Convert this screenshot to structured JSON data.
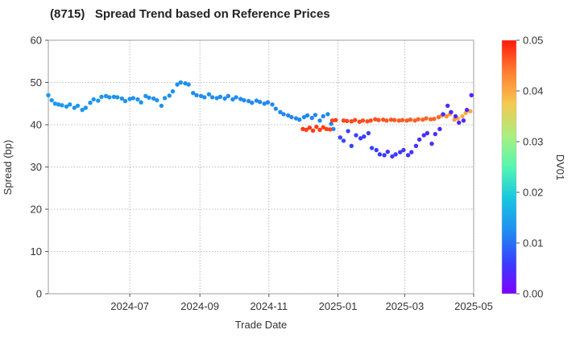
{
  "chart_data": {
    "type": "scatter",
    "title": "(8715)   Spread Trend based on Reference Prices",
    "xlabel": "Trade Date",
    "ylabel": "Spread (bp)",
    "colorbar_label": "DV01",
    "x_range": [
      "2024-04-20",
      "2025-05-01"
    ],
    "y_range": [
      0,
      60
    ],
    "x_ticks": [
      "2024-07",
      "2024-09",
      "2024-11",
      "2025-01",
      "2025-03",
      "2025-05"
    ],
    "y_ticks": [
      "0",
      "10",
      "20",
      "30",
      "40",
      "50",
      "60"
    ],
    "colorbar_range": [
      0,
      0.05
    ],
    "colorbar_ticks": [
      "0.00",
      "0.01",
      "0.02",
      "0.03",
      "0.04",
      "0.05"
    ],
    "colormap": "jet",
    "grid": "dotted",
    "series": [
      {
        "points": [
          [
            "2024-04-20",
            47.0,
            0.0135
          ],
          [
            "2024-04-23",
            45.8,
            0.0135
          ],
          [
            "2024-04-26",
            45.0,
            0.0134
          ],
          [
            "2024-04-29",
            44.8,
            0.0134
          ],
          [
            "2024-05-02",
            44.6,
            0.0134
          ],
          [
            "2024-05-06",
            44.3,
            0.0134
          ],
          [
            "2024-05-09",
            44.8,
            0.0133
          ],
          [
            "2024-05-13",
            44.0,
            0.0133
          ],
          [
            "2024-05-16",
            44.5,
            0.0133
          ],
          [
            "2024-05-20",
            43.5,
            0.0133
          ],
          [
            "2024-05-23",
            44.0,
            0.0132
          ],
          [
            "2024-05-27",
            45.2,
            0.0132
          ],
          [
            "2024-05-30",
            46.0,
            0.0132
          ],
          [
            "2024-06-03",
            45.7,
            0.0132
          ],
          [
            "2024-06-06",
            46.6,
            0.0131
          ],
          [
            "2024-06-10",
            46.8,
            0.0131
          ],
          [
            "2024-06-13",
            46.5,
            0.0131
          ],
          [
            "2024-06-17",
            46.6,
            0.0131
          ],
          [
            "2024-06-20",
            46.5,
            0.013
          ],
          [
            "2024-06-24",
            46.2,
            0.013
          ],
          [
            "2024-06-27",
            45.6,
            0.013
          ],
          [
            "2024-07-01",
            46.1,
            0.013
          ],
          [
            "2024-07-04",
            46.3,
            0.0129
          ],
          [
            "2024-07-08",
            46.0,
            0.0129
          ],
          [
            "2024-07-11",
            45.3,
            0.0129
          ],
          [
            "2024-07-15",
            46.8,
            0.0129
          ],
          [
            "2024-07-18",
            46.4,
            0.0128
          ],
          [
            "2024-07-22",
            46.2,
            0.0128
          ],
          [
            "2024-07-25",
            45.8,
            0.0128
          ],
          [
            "2024-07-29",
            44.5,
            0.0128
          ],
          [
            "2024-08-01",
            46.3,
            0.0127
          ],
          [
            "2024-08-05",
            46.9,
            0.0127
          ],
          [
            "2024-08-08",
            47.9,
            0.0127
          ],
          [
            "2024-08-12",
            49.5,
            0.0127
          ],
          [
            "2024-08-15",
            50.0,
            0.0126
          ],
          [
            "2024-08-19",
            49.8,
            0.0126
          ],
          [
            "2024-08-22",
            49.5,
            0.0126
          ],
          [
            "2024-08-26",
            47.5,
            0.0126
          ],
          [
            "2024-08-29",
            47.0,
            0.0125
          ],
          [
            "2024-09-02",
            46.8,
            0.0125
          ],
          [
            "2024-09-05",
            46.5,
            0.0125
          ],
          [
            "2024-09-09",
            47.2,
            0.0125
          ],
          [
            "2024-09-12",
            46.5,
            0.0124
          ],
          [
            "2024-09-16",
            46.3,
            0.0124
          ],
          [
            "2024-09-19",
            46.6,
            0.0124
          ],
          [
            "2024-09-23",
            46.2,
            0.0124
          ],
          [
            "2024-09-26",
            46.8,
            0.0123
          ],
          [
            "2024-09-30",
            46.0,
            0.0123
          ],
          [
            "2024-10-03",
            46.5,
            0.0123
          ],
          [
            "2024-10-07",
            46.1,
            0.0123
          ],
          [
            "2024-10-10",
            45.8,
            0.0122
          ],
          [
            "2024-10-14",
            45.6,
            0.0122
          ],
          [
            "2024-10-17",
            45.2,
            0.0122
          ],
          [
            "2024-10-21",
            45.7,
            0.0122
          ],
          [
            "2024-10-24",
            45.4,
            0.0121
          ],
          [
            "2024-10-28",
            45.0,
            0.0121
          ],
          [
            "2024-10-31",
            45.3,
            0.0121
          ],
          [
            "2024-11-04",
            44.8,
            0.0121
          ],
          [
            "2024-11-07",
            43.8,
            0.012
          ],
          [
            "2024-11-11",
            43.0,
            0.012
          ],
          [
            "2024-11-14",
            42.5,
            0.012
          ],
          [
            "2024-11-18",
            42.2,
            0.012
          ],
          [
            "2024-11-21",
            41.8,
            0.0119
          ],
          [
            "2024-11-25",
            41.5,
            0.0119
          ],
          [
            "2024-11-28",
            41.2,
            0.0119
          ],
          [
            "2024-12-02",
            41.8,
            0.0119
          ],
          [
            "2024-12-05",
            42.2,
            0.0118
          ],
          [
            "2024-12-09",
            41.6,
            0.0118
          ],
          [
            "2024-12-12",
            42.3,
            0.0118
          ],
          [
            "2024-12-16",
            41.0,
            0.0118
          ],
          [
            "2024-12-19",
            42.0,
            0.0117
          ],
          [
            "2024-12-23",
            42.5,
            0.0117
          ],
          [
            "2024-12-26",
            40.2,
            0.0117
          ],
          [
            "2024-12-28",
            39.0,
            0.0117
          ]
        ]
      },
      {
        "points": [
          [
            "2024-12-01",
            39.0,
            0.048
          ],
          [
            "2024-12-04",
            38.8,
            0.0479
          ],
          [
            "2024-12-07",
            39.3,
            0.0479
          ],
          [
            "2024-12-10",
            38.6,
            0.0478
          ],
          [
            "2024-12-13",
            39.5,
            0.0478
          ],
          [
            "2024-12-16",
            38.8,
            0.0477
          ],
          [
            "2024-12-19",
            39.4,
            0.0477
          ],
          [
            "2024-12-22",
            39.0,
            0.0476
          ],
          [
            "2024-12-25",
            38.9,
            0.0476
          ],
          [
            "2024-12-27",
            41.0,
            0.0475
          ],
          [
            "2024-12-30",
            41.1,
            0.0475
          ]
        ]
      },
      {
        "points": [
          [
            "2025-01-06",
            41.0,
            0.0474
          ],
          [
            "2025-01-09",
            40.9,
            0.0473
          ],
          [
            "2025-01-13",
            40.8,
            0.0472
          ],
          [
            "2025-01-16",
            41.1,
            0.0471
          ],
          [
            "2025-01-20",
            40.7,
            0.047
          ],
          [
            "2025-01-23",
            41.0,
            0.0469
          ],
          [
            "2025-01-27",
            40.8,
            0.0468
          ],
          [
            "2025-01-30",
            41.0,
            0.0467
          ],
          [
            "2025-02-03",
            41.3,
            0.0466
          ],
          [
            "2025-02-06",
            41.1,
            0.0465
          ],
          [
            "2025-02-10",
            41.2,
            0.0464
          ],
          [
            "2025-02-13",
            41.0,
            0.0463
          ],
          [
            "2025-02-17",
            41.2,
            0.0462
          ],
          [
            "2025-02-20",
            41.1,
            0.0461
          ],
          [
            "2025-02-24",
            41.0,
            0.046
          ],
          [
            "2025-02-27",
            41.1,
            0.0459
          ],
          [
            "2025-03-03",
            41.0,
            0.0458
          ],
          [
            "2025-03-06",
            41.2,
            0.0457
          ],
          [
            "2025-03-10",
            41.0,
            0.0456
          ],
          [
            "2025-03-13",
            41.3,
            0.0455
          ],
          [
            "2025-03-17",
            41.2,
            0.0454
          ],
          [
            "2025-03-20",
            41.5,
            0.0453
          ],
          [
            "2025-03-24",
            41.3,
            0.0452
          ],
          [
            "2025-03-27",
            41.4,
            0.0451
          ],
          [
            "2025-03-31",
            41.8,
            0.045
          ],
          [
            "2025-04-03",
            42.2,
            0.042
          ],
          [
            "2025-04-07",
            42.0,
            0.042
          ],
          [
            "2025-04-10",
            42.5,
            0.041
          ],
          [
            "2025-04-14",
            41.2,
            0.041
          ],
          [
            "2025-04-17",
            41.5,
            0.04
          ],
          [
            "2025-04-21",
            42.0,
            0.04
          ],
          [
            "2025-04-24",
            42.8,
            0.04
          ],
          [
            "2025-04-28",
            43.2,
            0.04
          ]
        ]
      },
      {
        "points": [
          [
            "2025-01-03",
            37.0,
            0.007
          ],
          [
            "2025-01-06",
            36.2,
            0.0069
          ],
          [
            "2025-01-10",
            38.5,
            0.0068
          ],
          [
            "2025-01-13",
            35.0,
            0.0067
          ],
          [
            "2025-01-17",
            37.5,
            0.0066
          ],
          [
            "2025-01-21",
            36.8,
            0.0065
          ],
          [
            "2025-01-24",
            37.2,
            0.0064
          ],
          [
            "2025-01-28",
            38.0,
            0.0063
          ],
          [
            "2025-01-31",
            34.5,
            0.0062
          ],
          [
            "2025-02-04",
            34.0,
            0.0061
          ],
          [
            "2025-02-07",
            33.0,
            0.006
          ],
          [
            "2025-02-11",
            32.8,
            0.0059
          ],
          [
            "2025-02-14",
            33.6,
            0.0058
          ],
          [
            "2025-02-18",
            32.5,
            0.0057
          ],
          [
            "2025-02-21",
            33.0,
            0.0056
          ],
          [
            "2025-02-25",
            33.5,
            0.0055
          ],
          [
            "2025-02-28",
            34.0,
            0.0054
          ],
          [
            "2025-03-04",
            32.8,
            0.0053
          ],
          [
            "2025-03-07",
            33.5,
            0.0052
          ],
          [
            "2025-03-11",
            35.0,
            0.0051
          ],
          [
            "2025-03-14",
            36.5,
            0.005
          ],
          [
            "2025-03-18",
            37.5,
            0.0049
          ],
          [
            "2025-03-21",
            38.0,
            0.0048
          ],
          [
            "2025-03-25",
            35.5,
            0.0047
          ],
          [
            "2025-03-28",
            37.8,
            0.0046
          ],
          [
            "2025-04-01",
            39.0,
            0.0045
          ],
          [
            "2025-04-04",
            42.5,
            0.0044
          ],
          [
            "2025-04-08",
            44.5,
            0.0043
          ],
          [
            "2025-04-11",
            43.0,
            0.0042
          ],
          [
            "2025-04-15",
            42.0,
            0.0041
          ],
          [
            "2025-04-18",
            40.5,
            0.004
          ],
          [
            "2025-04-22",
            41.0,
            0.0039
          ],
          [
            "2025-04-25",
            43.5,
            0.0038
          ],
          [
            "2025-04-29",
            47.0,
            0.0037
          ]
        ]
      }
    ]
  }
}
